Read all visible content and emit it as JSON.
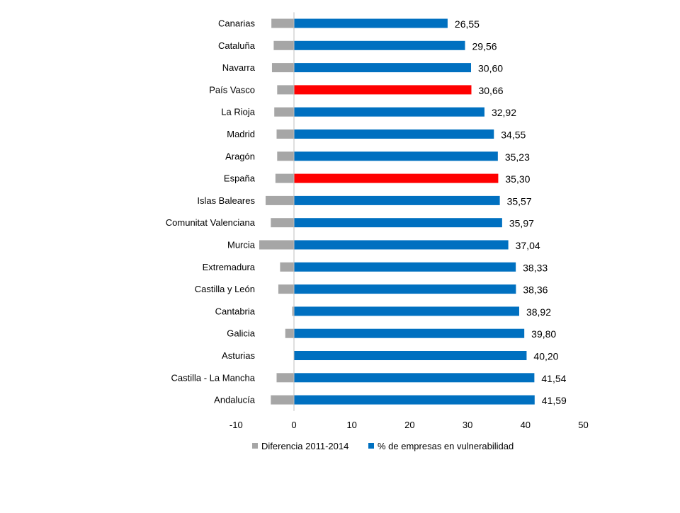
{
  "chart_data": {
    "type": "bar",
    "orientation": "horizontal",
    "title": "",
    "xlabel": "",
    "ylabel": "",
    "xlim": [
      -10,
      50
    ],
    "x_ticks": [
      "-10",
      "0",
      "10",
      "20",
      "30",
      "40",
      "50"
    ],
    "grid": false,
    "legend_position": "bottom",
    "categories": [
      "Canarias",
      "Cataluña",
      "Navarra",
      "País Vasco",
      "La Rioja",
      "Madrid",
      "Aragón",
      "España",
      "Islas Baleares",
      "Comunitat Valenciana",
      "Murcia",
      "Extremadura",
      "Castilla y León",
      "Cantabria",
      "Galicia",
      "Asturias",
      "Castilla - La Mancha",
      "Andalucía"
    ],
    "series": [
      {
        "name": "Diferencia 2011-2014",
        "color": "#A6A6A6",
        "values": [
          -3.9,
          -3.5,
          -3.8,
          -2.9,
          -3.4,
          -3.0,
          -2.9,
          -3.2,
          -4.9,
          -4.0,
          -6.0,
          -2.4,
          -2.7,
          -0.3,
          -1.5,
          0.3,
          -3.0,
          -4.0
        ]
      },
      {
        "name": "% de empresas en vulnerabilidad",
        "color": "#0070C0",
        "highlight_color": "#FF0000",
        "highlight_categories": [
          "País Vasco",
          "España"
        ],
        "values": [
          26.55,
          29.56,
          30.6,
          30.66,
          32.92,
          34.55,
          35.23,
          35.3,
          35.57,
          35.97,
          37.04,
          38.33,
          38.36,
          38.92,
          39.8,
          40.2,
          41.54,
          41.59
        ],
        "labels": [
          "26,55",
          "29,56",
          "30,60",
          "30,66",
          "32,92",
          "34,55",
          "35,23",
          "35,30",
          "35,57",
          "35,97",
          "37,04",
          "38,33",
          "38,36",
          "38,92",
          "39,80",
          "40,20",
          "41,54",
          "41,59"
        ]
      }
    ]
  }
}
